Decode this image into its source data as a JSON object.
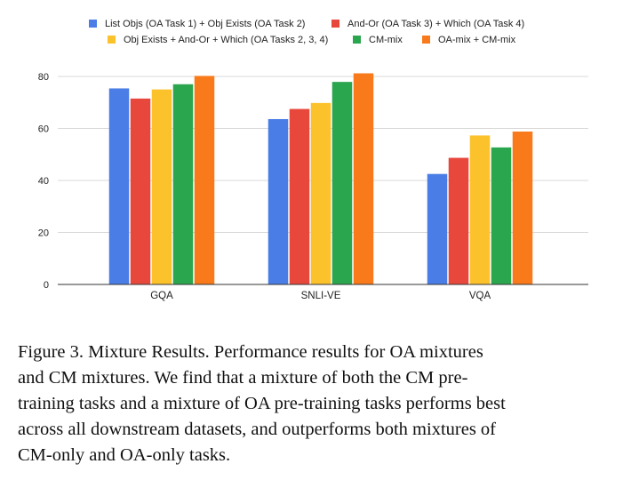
{
  "chart_data": {
    "type": "bar",
    "categories": [
      "GQA",
      "SNLI-VE",
      "VQA"
    ],
    "series": [
      {
        "name": "List Objs (OA Task 1) + Obj Exists (OA Task 2)",
        "color": "#4a7ee6",
        "values": [
          75.4,
          63.6,
          42.5
        ]
      },
      {
        "name": "And-Or (OA Task 3) + Which (OA Task 4)",
        "color": "#e8473c",
        "values": [
          71.5,
          67.5,
          48.7
        ]
      },
      {
        "name": "Obj Exists + And-Or + Which (OA Tasks 2, 3, 4)",
        "color": "#fbc22c",
        "values": [
          75.0,
          69.8,
          57.3
        ]
      },
      {
        "name": "CM-mix",
        "color": "#2aa64f",
        "values": [
          77.0,
          77.9,
          52.7
        ]
      },
      {
        "name": "OA-mix + CM-mix",
        "color": "#f97a1a",
        "values": [
          80.2,
          81.2,
          58.8
        ]
      }
    ],
    "ylim": [
      0,
      80
    ],
    "yticks": [
      "0",
      "20",
      "40",
      "60",
      "80"
    ],
    "title": "",
    "xlabel": "",
    "ylabel": "",
    "grid": true,
    "legend": "top"
  },
  "caption": {
    "lines": [
      "Figure 3. Mixture Results. Performance results for OA mixtures",
      "and CM mixtures. We find that a mixture of both the CM pre-",
      "training tasks and a mixture of OA pre-training tasks performs best",
      "across all downstream datasets, and outperforms both mixtures of",
      "CM-only and OA-only tasks."
    ]
  }
}
